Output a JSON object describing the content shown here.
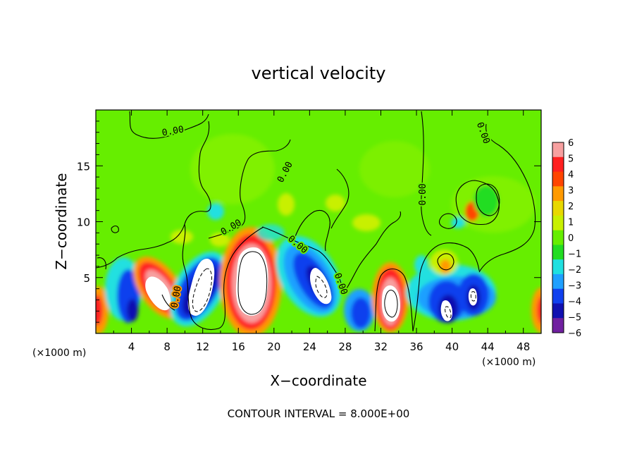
{
  "chart_data": {
    "type": "heatmap",
    "title": "vertical velocity",
    "xlabel": "X−coordinate",
    "ylabel": "Z−coordinate",
    "x_unit_left": "(×1000 m)",
    "x_unit_right": "(×1000 m)",
    "xlim": [
      0,
      50
    ],
    "ylim": [
      0,
      20
    ],
    "x_ticks": [
      4,
      8,
      12,
      16,
      20,
      24,
      28,
      32,
      36,
      40,
      44,
      48
    ],
    "y_ticks": [
      5,
      10,
      15
    ],
    "colorbar": {
      "min": -6,
      "max": 6,
      "labels": [
        "6",
        "5",
        "4",
        "3",
        "2",
        "1",
        "0",
        "−1",
        "−2",
        "−3",
        "−4",
        "−5",
        "−6"
      ],
      "colors": [
        "#f7a0a0",
        "#ff2020",
        "#ff4500",
        "#ff9a00",
        "#e8d800",
        "#c8f000",
        "#66ee00",
        "#22dd22",
        "#20e0e0",
        "#1fa0ff",
        "#1040ee",
        "#1010b0",
        "#7020a0"
      ],
      "saturated_color": "#ffffff"
    },
    "contour_label": "0.00",
    "contour_interval_text": "CONTOUR INTERVAL = 8.000E+00",
    "features": [
      {
        "x": 7.5,
        "z": 3.5,
        "w": 5.0
      },
      {
        "x": 11.5,
        "z": 3.0,
        "w": -5.0
      },
      {
        "x": 17.5,
        "z": 4.0,
        "w": 8.0
      },
      {
        "x": 13.0,
        "z": 4.0,
        "w": 6.0
      },
      {
        "x": 25.0,
        "z": 3.8,
        "w": -5.0
      },
      {
        "x": 22.0,
        "z": 6.5,
        "w": -3.0
      },
      {
        "x": 33.0,
        "z": 2.8,
        "w": 6.0
      },
      {
        "x": 39.0,
        "z": 2.2,
        "w": -6.0
      },
      {
        "x": 42.0,
        "z": 3.0,
        "w": -6.0
      },
      {
        "x": 44.0,
        "z": 11.0,
        "w": -2.0
      },
      {
        "x": 3.0,
        "z": 3.0,
        "w": -4.0
      },
      {
        "x": 0.5,
        "z": 2.5,
        "w": 3.0
      },
      {
        "x": 49.5,
        "z": 2.5,
        "w": 3.0
      }
    ]
  }
}
